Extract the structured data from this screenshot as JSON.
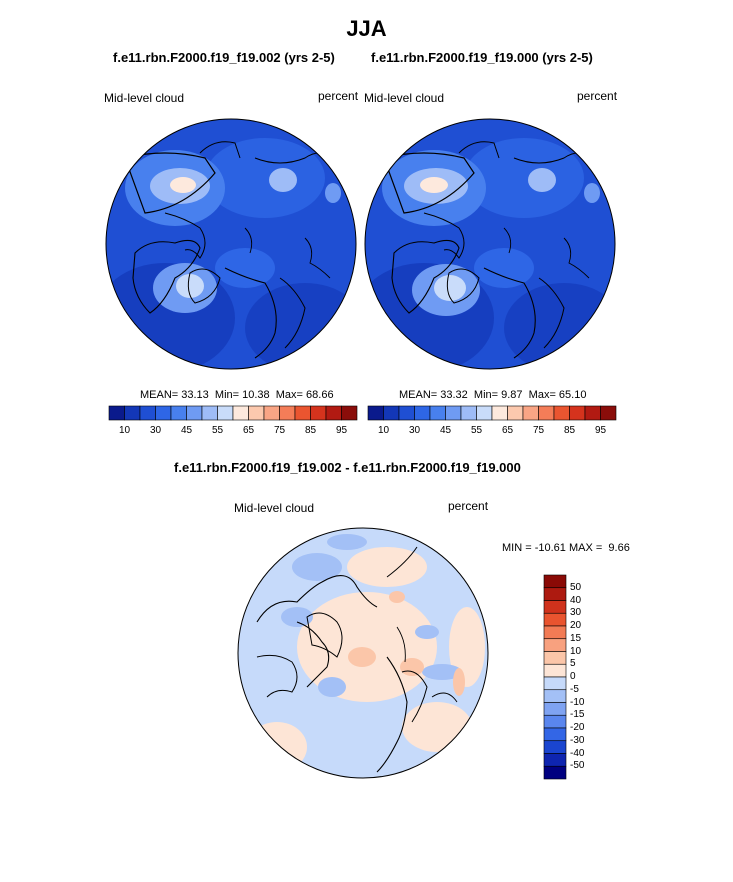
{
  "figure": {
    "title": "JJA",
    "diff_title": "f.e11.rbn.F2000.f19_f19.002 - f.e11.rbn.F2000.f19_f19.000"
  },
  "colors": {
    "abs_palette": [
      "#0a1a8c",
      "#1337b7",
      "#1f4fd3",
      "#2e66e6",
      "#4880ee",
      "#6f9bf3",
      "#9ebcf7",
      "#c9dcfa",
      "#fde9dd",
      "#fcc9ae",
      "#f9a585",
      "#f47d58",
      "#ea5530",
      "#d5331d",
      "#b21a12",
      "#8a0d0a"
    ],
    "diff_palette": [
      "#000080",
      "#0e25b0",
      "#1a45d0",
      "#3366e6",
      "#5a86ee",
      "#7fa3f2",
      "#a3c0f6",
      "#c6dafa",
      "#fde5d6",
      "#fbc6a9",
      "#f8a17f",
      "#f27b55",
      "#e9542f",
      "#d0321c",
      "#ad1a10",
      "#8a0a06"
    ],
    "land": "#000000"
  },
  "chart_data": [
    {
      "type": "heatmap",
      "title": "f.e11.rbn.F2000.f19_f19.002 (yrs 2-5)",
      "left_label": "Mid-level cloud",
      "right_label": "percent",
      "stats": {
        "mean": "33.13",
        "min": "10.38",
        "max": "68.66"
      },
      "colorbar_ticks": [
        "10",
        "30",
        "45",
        "55",
        "65",
        "75",
        "85",
        "95"
      ],
      "projection": "north polar stereographic"
    },
    {
      "type": "heatmap",
      "title": "f.e11.rbn.F2000.f19_f19.000 (yrs 2-5)",
      "left_label": "Mid-level cloud",
      "right_label": "percent",
      "stats": {
        "mean": "33.32",
        "min": "9.87",
        "max": "65.10"
      },
      "colorbar_ticks": [
        "10",
        "30",
        "45",
        "55",
        "65",
        "75",
        "85",
        "95"
      ],
      "projection": "north polar stereographic"
    },
    {
      "type": "heatmap",
      "title": "f.e11.rbn.F2000.f19_f19.002 - f.e11.rbn.F2000.f19_f19.000",
      "left_label": "Mid-level cloud",
      "right_label": "percent",
      "stats": {
        "min": "-10.61",
        "max": "9.66"
      },
      "colorbar_ticks": [
        "50",
        "40",
        "30",
        "20",
        "15",
        "10",
        "5",
        "0",
        "-5",
        "-10",
        "-15",
        "-20",
        "-30",
        "-40",
        "-50"
      ],
      "projection": "north polar stereographic"
    }
  ]
}
